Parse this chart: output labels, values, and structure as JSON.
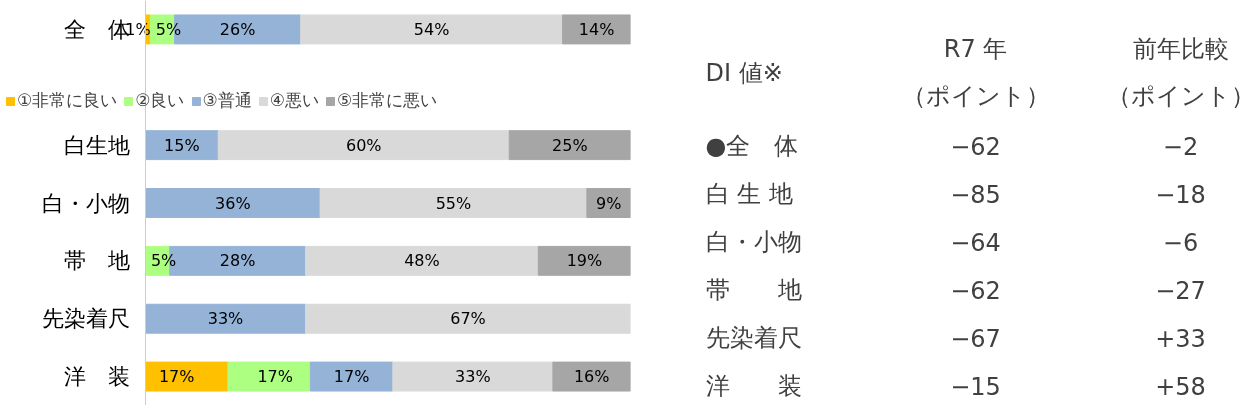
{
  "chart_data": [
    {
      "type": "bar",
      "orientation": "horizontal",
      "stacked": true,
      "categories": [
        "全　体",
        "白生地",
        "白・小物",
        "帯　地",
        "先染着尺",
        "洋　装"
      ],
      "tick_labels": "y",
      "legend": "top",
      "grid": false,
      "series": [
        {
          "name": "①非常に良い",
          "color": "#ffc000",
          "values": [
            1,
            null,
            null,
            null,
            null,
            17
          ],
          "value_labels": [
            "1%",
            null,
            null,
            null,
            null,
            "17%"
          ]
        },
        {
          "name": "②良い",
          "color": "#adff82",
          "values": [
            5,
            null,
            null,
            5,
            null,
            17
          ],
          "value_labels": [
            "5%",
            null,
            null,
            "5%",
            null,
            "17%"
          ]
        },
        {
          "name": "③普通",
          "color": "#95b3d7",
          "values": [
            26,
            15,
            36,
            28,
            33,
            17
          ],
          "value_labels": [
            "26%",
            "15%",
            "36%",
            "28%",
            "33%",
            "17%"
          ]
        },
        {
          "name": "④悪い",
          "color": "#d9d9d9",
          "values": [
            54,
            60,
            55,
            48,
            67,
            33
          ],
          "value_labels": [
            "54%",
            "60%",
            "55%",
            "48%",
            "67%",
            "33%"
          ]
        },
        {
          "name": "⑤非常に悪い",
          "color": "#a6a6a6",
          "values": [
            14,
            25,
            9,
            19,
            null,
            16
          ],
          "value_labels": [
            "14%",
            "25%",
            "9%",
            "19%",
            null,
            "16%"
          ]
        }
      ]
    },
    {
      "type": "other",
      "annotations": [
        "DI 値※",
        "R7 年",
        "前年比較",
        "（ポイント）",
        "（ポイント）",
        "●全　体",
        "−62",
        "−2",
        "白 生 地",
        "−85",
        "−18",
        "白・小物",
        "−64",
        "−6",
        "帯　　地",
        "−62",
        "−27",
        "先染着尺",
        "−67",
        "+33",
        "洋　　装",
        "−15",
        "+58"
      ]
    }
  ]
}
